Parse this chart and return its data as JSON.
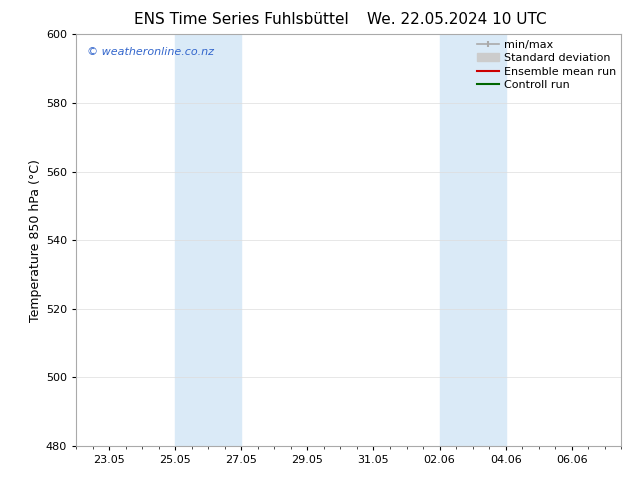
{
  "title_left": "ENS Time Series Fuhlsbüttel",
  "title_right": "We. 22.05.2024 10 UTC",
  "ylabel": "Temperature 850 hPa (°C)",
  "ylim": [
    480,
    600
  ],
  "yticks": [
    480,
    500,
    520,
    540,
    560,
    580,
    600
  ],
  "xtick_labels": [
    "23.05",
    "25.05",
    "27.05",
    "29.05",
    "31.05",
    "02.06",
    "04.06",
    "06.06"
  ],
  "xtick_positions": [
    1,
    3,
    5,
    7,
    9,
    11,
    13,
    15
  ],
  "xlim": [
    0,
    16
  ],
  "shaded_bands": [
    {
      "x_start": 3,
      "x_end": 5,
      "color": "#daeaf7"
    },
    {
      "x_start": 11,
      "x_end": 13,
      "color": "#daeaf7"
    }
  ],
  "background_color": "#ffffff",
  "plot_bg_color": "#ffffff",
  "watermark_text": "© weatheronline.co.nz",
  "watermark_color": "#3366cc",
  "legend_entries": [
    {
      "label": "min/max",
      "color": "#aaaaaa",
      "lw": 1.2
    },
    {
      "label": "Standard deviation",
      "color": "#cccccc",
      "lw": 8
    },
    {
      "label": "Ensemble mean run",
      "color": "#cc0000",
      "lw": 1.5
    },
    {
      "label": "Controll run",
      "color": "#006600",
      "lw": 1.5
    }
  ],
  "title_fontsize": 11,
  "ylabel_fontsize": 9,
  "tick_fontsize": 8,
  "legend_fontsize": 8,
  "watermark_fontsize": 8
}
